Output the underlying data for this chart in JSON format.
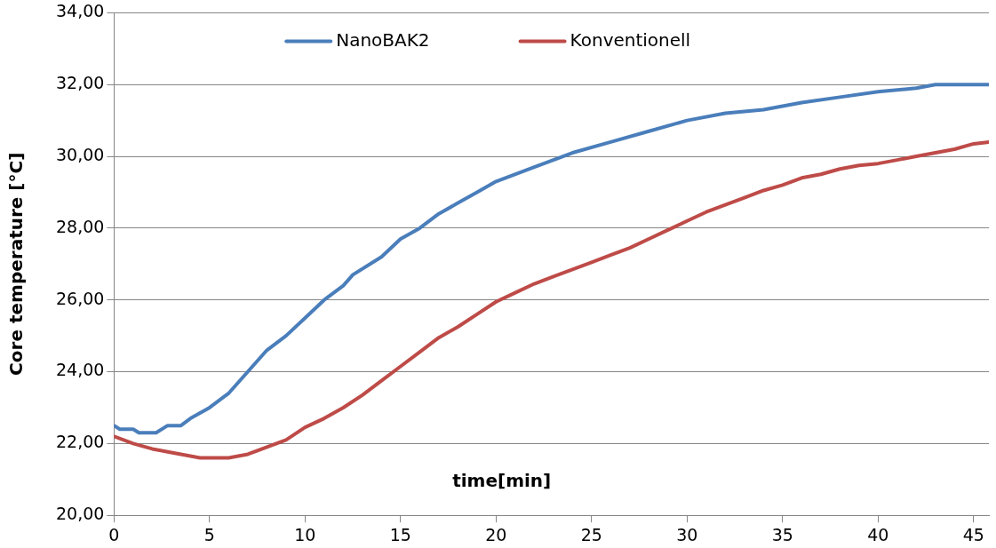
{
  "chart_data": {
    "type": "line",
    "xlabel": "time[min]",
    "ylabel": "Core temperature [°C]",
    "xlim": [
      0,
      45.8
    ],
    "xticks": [
      0,
      5,
      10,
      15,
      20,
      25,
      30,
      35,
      40,
      45
    ],
    "ylim": [
      20,
      34
    ],
    "yticks": [
      {
        "value": 20,
        "label": "20,00"
      },
      {
        "value": 22,
        "label": "22,00"
      },
      {
        "value": 24,
        "label": "24,00"
      },
      {
        "value": 26,
        "label": "26,00"
      },
      {
        "value": 28,
        "label": "28,00"
      },
      {
        "value": 30,
        "label": "30,00"
      },
      {
        "value": 32,
        "label": "32,00"
      },
      {
        "value": 34,
        "label": "34,00"
      }
    ],
    "grid": "y",
    "legend": "top",
    "marker": "none",
    "line_style": "solid",
    "series": [
      {
        "name": "NanoBAK2",
        "color": "#4a7ebb",
        "x": [
          0,
          0.3,
          1,
          1.3,
          2.2,
          2.8,
          3.5,
          4,
          5,
          6,
          7,
          8,
          9,
          10,
          11,
          12,
          12.5,
          14,
          15,
          16,
          17,
          18,
          19,
          20,
          22,
          24,
          26,
          28,
          30,
          32,
          34,
          35,
          36,
          38,
          40,
          42,
          43,
          45.8
        ],
        "values": [
          22.5,
          22.4,
          22.4,
          22.3,
          22.3,
          22.5,
          22.5,
          22.7,
          23.0,
          23.4,
          24.0,
          24.6,
          25.0,
          25.5,
          26.0,
          26.4,
          26.7,
          27.2,
          27.7,
          28.0,
          28.4,
          28.7,
          29.0,
          29.3,
          29.7,
          30.1,
          30.4,
          30.7,
          31.0,
          31.2,
          31.3,
          31.4,
          31.5,
          31.65,
          31.8,
          31.9,
          32.0,
          32.0
        ]
      },
      {
        "name": "Konventionell",
        "color": "#be4b48",
        "x": [
          0,
          1,
          2,
          3,
          4,
          4.5,
          6,
          7,
          8,
          9,
          10,
          11,
          12,
          13,
          14,
          15,
          16,
          17,
          18,
          19,
          20,
          21,
          22,
          23,
          24,
          25,
          26,
          27,
          28,
          29,
          30,
          31,
          32,
          33,
          34,
          35,
          36,
          37,
          38,
          39,
          40,
          41,
          42,
          43,
          44,
          45,
          45.8
        ],
        "values": [
          22.2,
          22.0,
          21.85,
          21.75,
          21.65,
          21.6,
          21.6,
          21.7,
          21.9,
          22.1,
          22.45,
          22.7,
          23.0,
          23.35,
          23.75,
          24.15,
          24.55,
          24.95,
          25.25,
          25.6,
          25.95,
          26.2,
          26.45,
          26.65,
          26.85,
          27.05,
          27.25,
          27.45,
          27.7,
          27.95,
          28.2,
          28.45,
          28.65,
          28.85,
          29.05,
          29.2,
          29.4,
          29.5,
          29.65,
          29.75,
          29.8,
          29.9,
          30.0,
          30.1,
          30.2,
          30.35,
          30.4
        ]
      }
    ]
  }
}
